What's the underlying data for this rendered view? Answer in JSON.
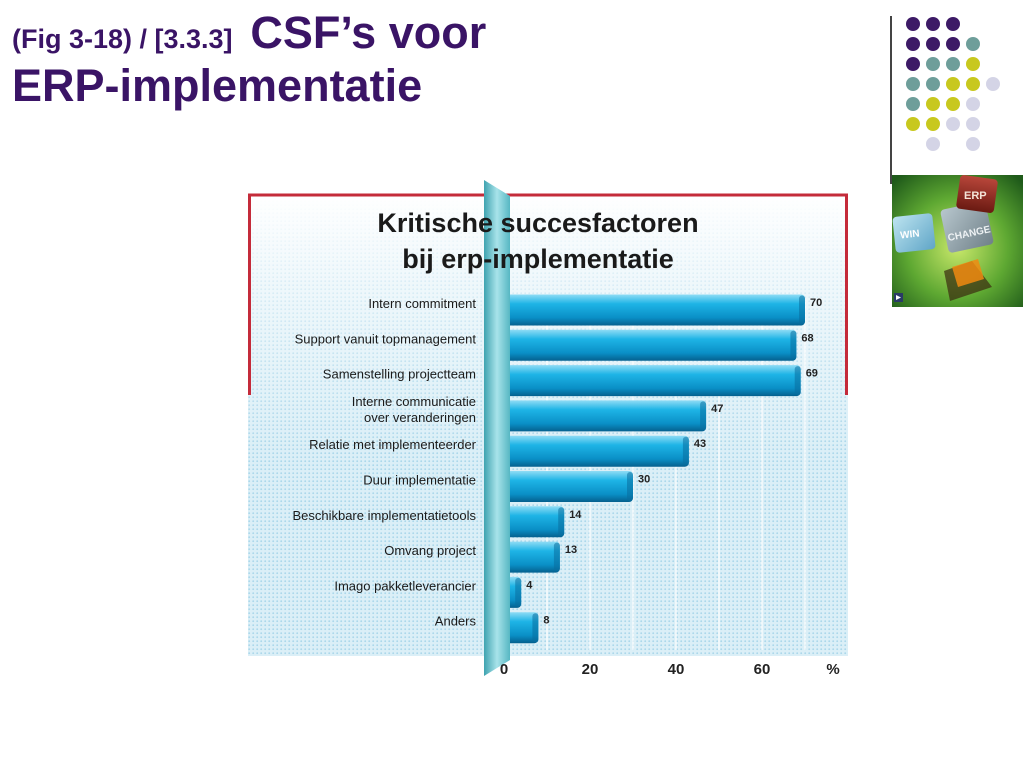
{
  "slide": {
    "title_prefix": "(Fig 3-18) / [3.3.3]",
    "title_main": "CSF’s voor",
    "title_line2": "ERP-implementatie"
  },
  "decoration": {
    "image_label_1": "ERP",
    "image_label_2": "CHANGE",
    "image_label_3": "WIN",
    "dot_colors": [
      "#3d1a66",
      "#6e9e9a",
      "#c8c81e",
      "#d4d4e6"
    ]
  },
  "chart_data": {
    "type": "bar",
    "orientation": "horizontal",
    "title": "Kritische succesfactoren bij erp-implementatie",
    "title_lines": [
      "Kritische succesfactoren",
      "bij erp-implementatie"
    ],
    "categories": [
      [
        "Intern commitment"
      ],
      [
        "Support vanuit topmanagement"
      ],
      [
        "Samenstelling projectteam"
      ],
      [
        "Interne communicatie",
        "over veranderingen"
      ],
      [
        "Relatie met implementeerder"
      ],
      [
        "Duur implementatie"
      ],
      [
        "Beschikbare implementatietools"
      ],
      [
        "Omvang project"
      ],
      [
        "Imago pakketleverancier"
      ],
      [
        "Anders"
      ]
    ],
    "values": [
      70,
      68,
      69,
      47,
      43,
      30,
      14,
      13,
      4,
      8
    ],
    "xlim": [
      0,
      75
    ],
    "xticks": [
      0,
      20,
      40,
      60
    ],
    "xunit": "%",
    "grid": true,
    "bar_color": "#19a5da"
  }
}
